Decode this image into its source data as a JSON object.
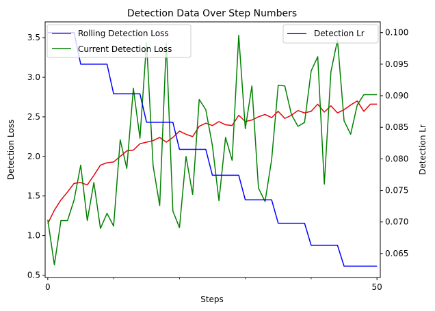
{
  "chart_data": {
    "type": "line",
    "title": "Detection Data Over Step Numbers",
    "xlabel": "Steps",
    "ylabel_left": "Detection Loss",
    "ylabel_right": "Detection Lr",
    "xlim": [
      -0.4,
      50.5
    ],
    "ylim_left": [
      0.47,
      3.7
    ],
    "ylim_right": [
      0.0612,
      0.1017
    ],
    "x_ticks": [
      0,
      50
    ],
    "x_minor_ticks": [
      10,
      20,
      30,
      40
    ],
    "y_ticks_left": [
      0.5,
      1.0,
      1.5,
      2.0,
      2.5,
      3.0,
      3.5
    ],
    "y_ticks_left_labels": [
      "0.5",
      "1.0",
      "1.5",
      "2.0",
      "2.5",
      "3.0",
      "3.5"
    ],
    "y_ticks_right": [
      0.065,
      0.07,
      0.075,
      0.08,
      0.085,
      0.09,
      0.095,
      0.1
    ],
    "y_ticks_right_labels": [
      "0.065",
      "0.070",
      "0.075",
      "0.080",
      "0.085",
      "0.090",
      "0.095",
      "0.100"
    ],
    "legend_left": "top-left",
    "legend_right": "top-right",
    "series": [
      {
        "name": "Rolling Detection Loss",
        "axis": "left",
        "color": "#e8000b",
        "x": [
          0,
          1,
          2,
          3,
          4,
          5,
          6,
          7,
          8,
          9,
          10,
          11,
          12,
          13,
          14,
          15,
          16,
          17,
          18,
          19,
          20,
          21,
          22,
          23,
          24,
          25,
          26,
          27,
          28,
          29,
          30,
          31,
          32,
          33,
          34,
          35,
          36,
          37,
          38,
          39,
          40,
          41,
          42,
          43,
          44,
          45,
          46,
          47,
          48,
          49,
          50
        ],
        "values": [
          1.15,
          1.32,
          1.45,
          1.55,
          1.66,
          1.67,
          1.64,
          1.76,
          1.89,
          1.92,
          1.93,
          2.0,
          2.07,
          2.08,
          2.16,
          2.18,
          2.2,
          2.24,
          2.18,
          2.24,
          2.32,
          2.28,
          2.25,
          2.38,
          2.42,
          2.39,
          2.44,
          2.4,
          2.39,
          2.52,
          2.44,
          2.46,
          2.5,
          2.53,
          2.49,
          2.57,
          2.48,
          2.52,
          2.58,
          2.55,
          2.57,
          2.66,
          2.56,
          2.64,
          2.55,
          2.59,
          2.65,
          2.7,
          2.57,
          2.66,
          2.66
        ]
      },
      {
        "name": "Current Detection Loss",
        "axis": "left",
        "color": "#008000",
        "x": [
          0,
          1,
          2,
          3,
          4,
          5,
          6,
          7,
          8,
          9,
          10,
          11,
          12,
          13,
          14,
          15,
          16,
          17,
          18,
          19,
          20,
          21,
          22,
          23,
          24,
          25,
          26,
          27,
          28,
          29,
          30,
          31,
          32,
          33,
          34,
          35,
          36,
          37,
          38,
          39,
          40,
          41,
          42,
          43,
          44,
          45,
          46,
          47,
          48,
          49,
          50
        ],
        "values": [
          1.2,
          0.63,
          1.19,
          1.19,
          1.45,
          1.89,
          1.19,
          1.67,
          1.09,
          1.28,
          1.12,
          2.21,
          1.85,
          2.86,
          2.23,
          3.44,
          1.88,
          1.38,
          3.43,
          1.31,
          1.1,
          2.0,
          1.52,
          2.72,
          2.59,
          2.14,
          1.44,
          2.24,
          1.95,
          3.53,
          2.35,
          2.89,
          1.6,
          1.43,
          1.96,
          2.9,
          2.89,
          2.53,
          2.38,
          2.43,
          3.08,
          3.26,
          1.65,
          3.07,
          3.47,
          2.45,
          2.28,
          2.65,
          2.78,
          2.78,
          2.78
        ]
      },
      {
        "name": "Detection Lr",
        "axis": "right",
        "color": "#0000ff",
        "x": [
          0,
          1,
          2,
          3,
          4,
          5,
          6,
          7,
          8,
          9,
          10,
          11,
          12,
          13,
          14,
          15,
          16,
          17,
          18,
          19,
          20,
          21,
          22,
          23,
          24,
          25,
          26,
          27,
          28,
          29,
          30,
          31,
          32,
          33,
          34,
          35,
          36,
          37,
          38,
          39,
          40,
          41,
          42,
          43,
          44,
          45,
          46,
          47,
          48,
          49,
          50
        ],
        "values": [
          0.1,
          0.1,
          0.1,
          0.1,
          0.1,
          0.095,
          0.095,
          0.095,
          0.095,
          0.095,
          0.0903,
          0.0903,
          0.0903,
          0.0903,
          0.0903,
          0.0858,
          0.0858,
          0.0858,
          0.0858,
          0.0858,
          0.0815,
          0.0815,
          0.0815,
          0.0815,
          0.0815,
          0.0774,
          0.0774,
          0.0774,
          0.0774,
          0.0774,
          0.0735,
          0.0735,
          0.0735,
          0.0735,
          0.0735,
          0.0698,
          0.0698,
          0.0698,
          0.0698,
          0.0698,
          0.0663,
          0.0663,
          0.0663,
          0.0663,
          0.0663,
          0.063,
          0.063,
          0.063,
          0.063,
          0.063,
          0.063
        ]
      }
    ]
  }
}
